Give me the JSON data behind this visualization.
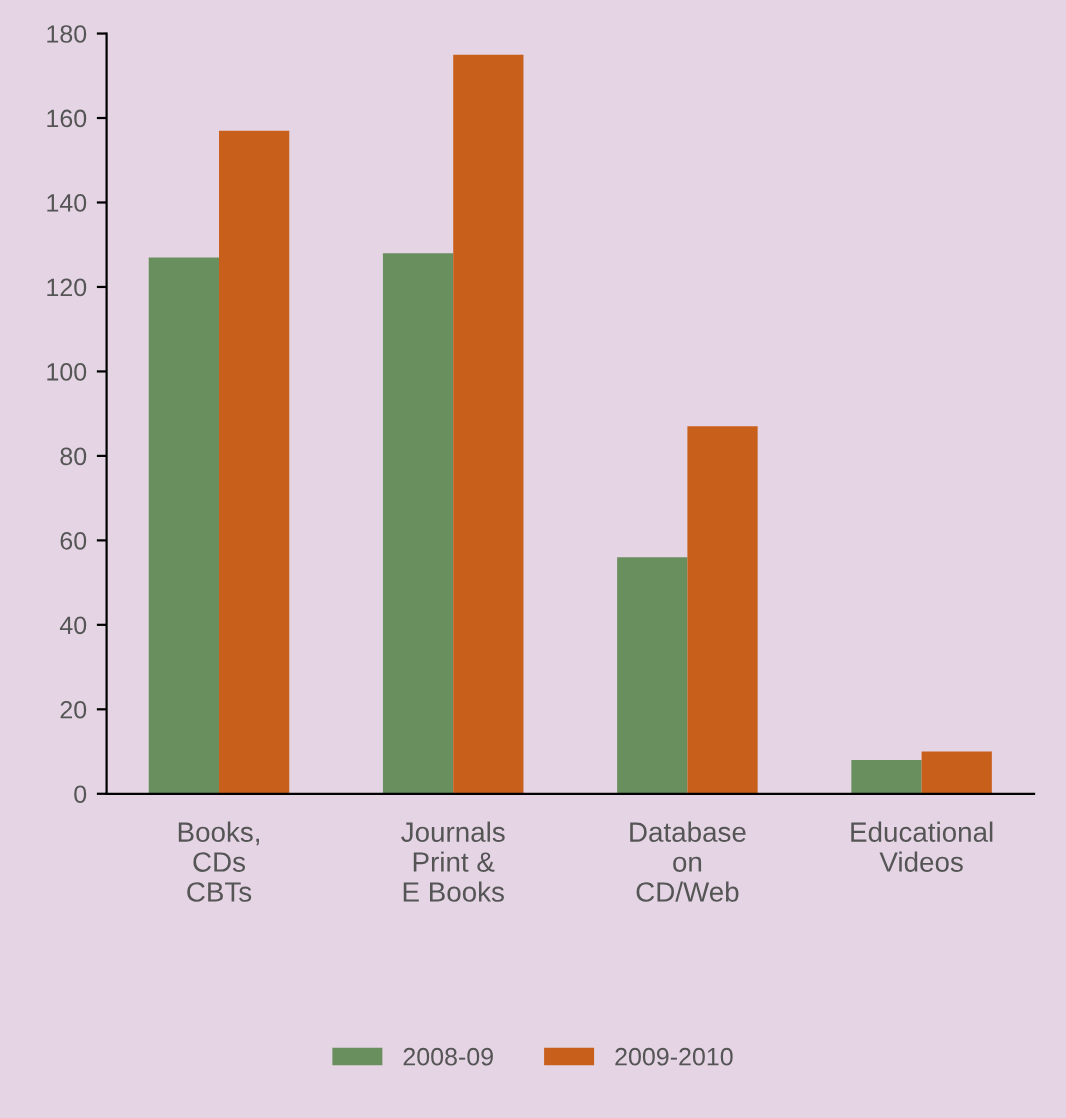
{
  "chart_data": {
    "type": "bar",
    "categories": [
      "Books,\nCDs\nCBTs",
      "Journals\nPrint &\nE Books",
      "Database\non\nCD/Web",
      "Educational\nVideos"
    ],
    "series": [
      {
        "name": "2008-09",
        "color": "#6a8f5e",
        "values": [
          127,
          128,
          56,
          8
        ]
      },
      {
        "name": "2009-2010",
        "color": "#c8601c",
        "values": [
          157,
          175,
          87,
          10
        ]
      }
    ],
    "ylim": [
      0,
      180
    ],
    "yticks": [
      0,
      20,
      40,
      60,
      80,
      100,
      120,
      140,
      160,
      180
    ],
    "grid": false,
    "legend": "bottom"
  }
}
